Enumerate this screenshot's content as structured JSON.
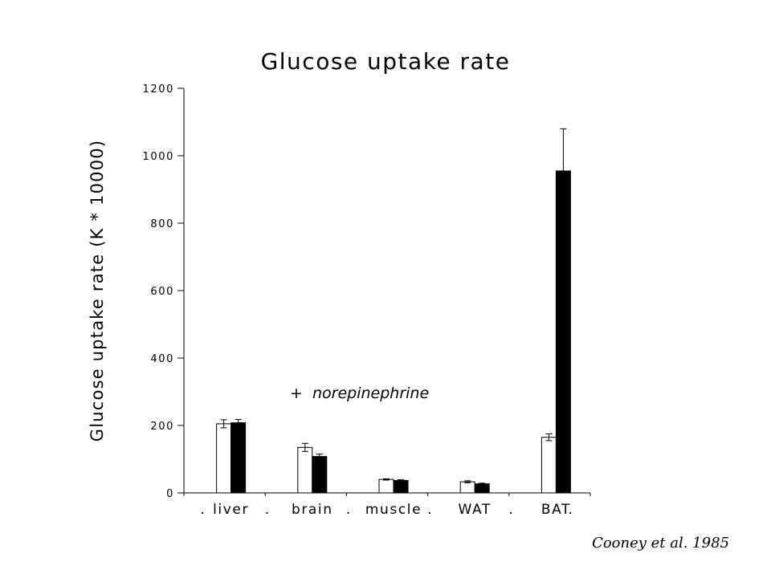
{
  "chart_data": {
    "type": "bar",
    "title": "Glucose uptake rate",
    "ylabel": "Glucose uptake rate  (K * 10000)",
    "xlabel": "",
    "ylim": [
      0,
      1200
    ],
    "yticks": [
      0,
      200,
      400,
      600,
      800,
      1000,
      1200
    ],
    "categories": [
      "liver",
      "brain",
      "muscle",
      "WAT",
      "BAT"
    ],
    "separator": ".",
    "series": [
      {
        "color": "#ffffff",
        "values": [
          205,
          135,
          40,
          33,
          165
        ],
        "errors": [
          12,
          12,
          2,
          3,
          10
        ]
      },
      {
        "name": "+  norepinephrine",
        "color": "#000000",
        "values": [
          208,
          108,
          37,
          27,
          955
        ],
        "errors": [
          10,
          7,
          2,
          2,
          125
        ]
      }
    ],
    "grid": false,
    "legend_placement": "center-lower"
  },
  "annotation": {
    "credit": "Cooney et al. 1985"
  }
}
